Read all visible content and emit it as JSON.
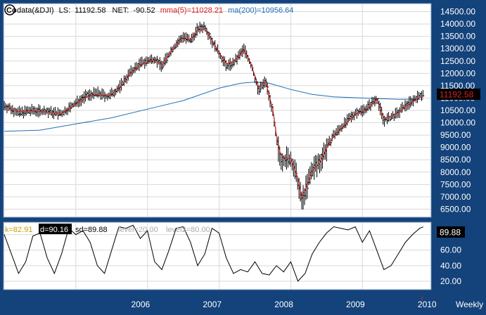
{
  "header": {
    "logo_text": "Co",
    "symbol": "data(&DJI)",
    "ls_label": "LS:",
    "ls_value": "11192.58",
    "net_label": "NET:",
    "net_value": "-90.52",
    "mma_label": "mma(5)=11028.21",
    "ma_label": "ma(200)=10956.64"
  },
  "price_tag": "11192.58",
  "stoch_tag": "89.88",
  "stoch_legend": {
    "k": "k=82.91",
    "d": "d=90.16",
    "sd": "sd=89.88",
    "level1": "level=20.00",
    "level2": "level2=80.00"
  },
  "periodicity": "Weekly",
  "colors": {
    "background": "#14427a",
    "plot_background": "#ffffff",
    "candles": "#000000",
    "mma_line": "#d9191c",
    "ma_line": "#1f6fb5",
    "stoch_line": "#000000",
    "header_mma": "#d9191c",
    "header_ma": "#1f6fb5",
    "k_color": "#c8a000",
    "level_color": "#aaaaaa",
    "d_highlight_bg": "#000000",
    "price_tag_bg": "#000000",
    "price_tag_fg": "#e02020",
    "stoch_tag_bg": "#000000",
    "scroll_arrow": "#e02020"
  },
  "chart_data": [
    {
      "type": "line",
      "title": "data(&DJI)",
      "x_ticks": [
        "2006",
        "2007",
        "2008",
        "2009",
        "2010"
      ],
      "x_tick_pos": [
        2006.0,
        2007.0,
        2008.0,
        2009.0,
        2010.0
      ],
      "xlim": [
        2005.0,
        2010.95
      ],
      "ylim": [
        6200,
        14800
      ],
      "y_ticks": [
        6500,
        7000,
        7500,
        8000,
        8500,
        9000,
        9500,
        10000,
        10500,
        11000,
        11500,
        12000,
        12500,
        13000,
        13500,
        14000,
        14500
      ],
      "y_tick_labels": [
        "6500.00",
        "7000.00",
        "7500.00",
        "8000.00",
        "8500.00",
        "9000.00",
        "9500.00",
        "10000.00",
        "10500.00",
        "11000.00",
        "11500.00",
        "12000.00",
        "12500.00",
        "13000.00",
        "13500.00",
        "14000.00",
        "14500.00"
      ],
      "grid": true,
      "price_path": {
        "x": [
          2005.0,
          2005.2,
          2005.4,
          2005.6,
          2005.8,
          2006.0,
          2006.15,
          2006.3,
          2006.45,
          2006.6,
          2006.75,
          2006.9,
          2007.1,
          2007.2,
          2007.35,
          2007.5,
          2007.6,
          2007.7,
          2007.8,
          2007.9,
          2008.0,
          2008.1,
          2008.2,
          2008.35,
          2008.45,
          2008.55,
          2008.65,
          2008.75,
          2008.8,
          2008.85,
          2008.9,
          2009.0,
          2009.1,
          2009.15,
          2009.2,
          2009.3,
          2009.4,
          2009.5,
          2009.6,
          2009.7,
          2009.8,
          2009.9,
          2010.0,
          2010.1,
          2010.2,
          2010.3,
          2010.4,
          2010.5,
          2010.6,
          2010.7,
          2010.8,
          2010.85
        ],
        "y": [
          10700,
          10400,
          10500,
          10450,
          10350,
          10800,
          11100,
          11200,
          11050,
          11400,
          12000,
          12400,
          12600,
          12300,
          13000,
          13500,
          13300,
          13800,
          13900,
          13300,
          12800,
          12300,
          12400,
          13000,
          12300,
          11300,
          11700,
          10400,
          9300,
          8600,
          8500,
          8500,
          7600,
          6800,
          7200,
          8100,
          8400,
          9000,
          9500,
          9800,
          10100,
          10400,
          10500,
          10700,
          11000,
          10100,
          10200,
          10400,
          10700,
          10900,
          11100,
          11192.58
        ]
      },
      "series": [
        {
          "name": "mma(5)",
          "x": [
            2005.0,
            2005.2,
            2005.4,
            2005.6,
            2005.8,
            2006.0,
            2006.15,
            2006.3,
            2006.45,
            2006.6,
            2006.75,
            2006.9,
            2007.1,
            2007.2,
            2007.35,
            2007.5,
            2007.6,
            2007.7,
            2007.8,
            2007.9,
            2008.0,
            2008.1,
            2008.2,
            2008.35,
            2008.45,
            2008.55,
            2008.65,
            2008.75,
            2008.8,
            2008.85,
            2008.9,
            2009.0,
            2009.1,
            2009.15,
            2009.2,
            2009.3,
            2009.4,
            2009.5,
            2009.6,
            2009.7,
            2009.8,
            2009.9,
            2010.0,
            2010.1,
            2010.2,
            2010.3,
            2010.4,
            2010.5,
            2010.6,
            2010.7,
            2010.8,
            2010.85
          ],
          "y": [
            10650,
            10450,
            10480,
            10430,
            10380,
            10750,
            11050,
            11150,
            11080,
            11350,
            11950,
            12350,
            12550,
            12350,
            12950,
            13450,
            13350,
            13750,
            13800,
            13350,
            12850,
            12400,
            12450,
            12950,
            12350,
            11450,
            11650,
            10550,
            9500,
            8800,
            8600,
            8550,
            7750,
            7000,
            7250,
            8050,
            8350,
            8950,
            9450,
            9750,
            10050,
            10350,
            10450,
            10650,
            10950,
            10200,
            10250,
            10400,
            10650,
            10850,
            11028,
            11028.21
          ]
        },
        {
          "name": "ma(200)",
          "x": [
            2005.0,
            2005.5,
            2006.0,
            2006.5,
            2007.0,
            2007.5,
            2008.0,
            2008.3,
            2008.5,
            2008.7,
            2009.0,
            2009.3,
            2009.6,
            2010.0,
            2010.5,
            2010.85
          ],
          "y": [
            9650,
            9700,
            9950,
            10200,
            10550,
            10900,
            11400,
            11600,
            11650,
            11600,
            11350,
            11150,
            11050,
            11000,
            10950,
            10956.64
          ]
        }
      ]
    },
    {
      "type": "line",
      "title": "",
      "xlim": [
        2005.0,
        2010.95
      ],
      "ylim": [
        10,
        95
      ],
      "y_ticks": [
        20,
        40,
        60,
        80
      ],
      "y_tick_labels": [
        "20.00",
        "40.00",
        "60.00",
        "80.00"
      ],
      "grid": true,
      "series": [
        {
          "name": "sd",
          "x": [
            2005.0,
            2005.1,
            2005.2,
            2005.3,
            2005.4,
            2005.5,
            2005.6,
            2005.7,
            2005.8,
            2005.9,
            2006.0,
            2006.1,
            2006.2,
            2006.3,
            2006.4,
            2006.5,
            2006.6,
            2006.7,
            2006.8,
            2006.9,
            2007.0,
            2007.1,
            2007.2,
            2007.3,
            2007.4,
            2007.5,
            2007.6,
            2007.7,
            2007.8,
            2007.9,
            2008.0,
            2008.1,
            2008.2,
            2008.3,
            2008.4,
            2008.5,
            2008.6,
            2008.7,
            2008.8,
            2008.9,
            2009.0,
            2009.1,
            2009.2,
            2009.3,
            2009.4,
            2009.5,
            2009.6,
            2009.7,
            2009.8,
            2009.9,
            2010.0,
            2010.1,
            2010.2,
            2010.3,
            2010.4,
            2010.5,
            2010.6,
            2010.7,
            2010.8,
            2010.85
          ],
          "y": [
            80,
            55,
            30,
            45,
            78,
            82,
            50,
            30,
            55,
            88,
            80,
            85,
            70,
            40,
            30,
            60,
            90,
            88,
            92,
            75,
            85,
            45,
            35,
            60,
            88,
            90,
            70,
            40,
            55,
            88,
            82,
            50,
            30,
            35,
            32,
            45,
            30,
            28,
            40,
            32,
            45,
            20,
            30,
            55,
            70,
            82,
            90,
            88,
            86,
            90,
            70,
            85,
            60,
            35,
            40,
            55,
            70,
            80,
            88,
            89.88
          ]
        }
      ]
    }
  ]
}
